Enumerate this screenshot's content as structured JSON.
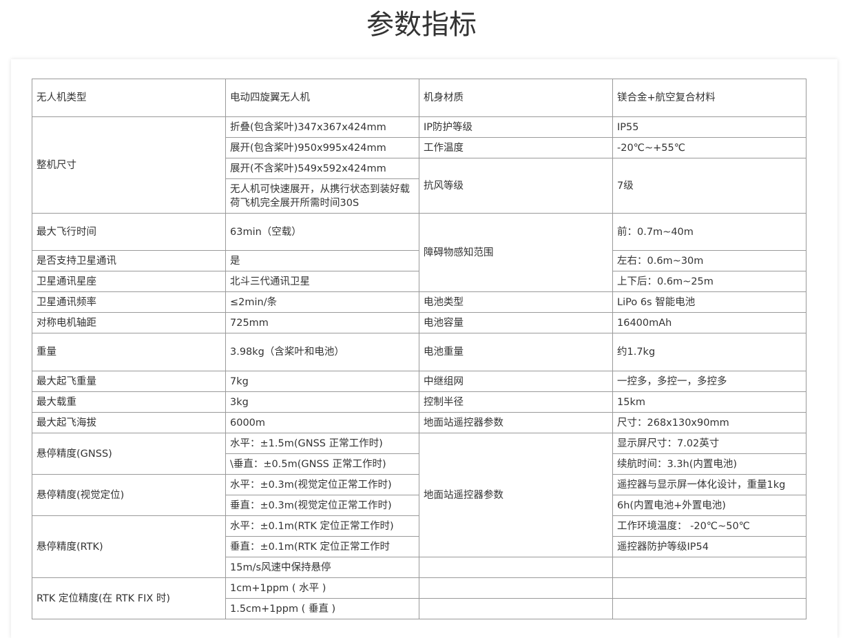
{
  "title": "参数指标",
  "rows": [
    {
      "h": 55,
      "cells": [
        {
          "t": "无人机类型"
        },
        {
          "t": "电动四旋翼无人机"
        },
        {
          "t": "机身材质"
        },
        {
          "t": "镁合金+航空复合材料"
        }
      ]
    },
    {
      "h": 30,
      "cells": [
        {
          "t": "整机尺寸",
          "rs": 4
        },
        {
          "t": "折叠(包含桨叶)347x367x424mm"
        },
        {
          "t": "IP防护等级"
        },
        {
          "t": "IP55"
        }
      ]
    },
    {
      "h": 30,
      "cells": [
        {
          "t": "展开(包含桨叶)950x995x424mm"
        },
        {
          "t": "工作温度"
        },
        {
          "t": "-20℃~+55℃"
        }
      ]
    },
    {
      "h": 30,
      "cells": [
        {
          "t": "展开(不含桨叶)549x592x424mm"
        },
        {
          "t": "抗风等级",
          "rs": 2
        },
        {
          "t": "7级",
          "rs": 2
        }
      ]
    },
    {
      "h": 50,
      "cells": [
        {
          "t": "无人机可快速展开，从携行状态到装好载荷飞机完全展开所需时间30S"
        }
      ]
    },
    {
      "h": 54,
      "cells": [
        {
          "t": "最大飞行时间"
        },
        {
          "t": "63min（空载）"
        },
        {
          "t": "障碍物感知范围",
          "rs": 3
        },
        {
          "t": "前：0.7m~40m"
        }
      ]
    },
    {
      "h": 30,
      "cells": [
        {
          "t": "是否支持卫星通讯"
        },
        {
          "t": "是"
        },
        {
          "t": "左右：0.6m~30m"
        }
      ]
    },
    {
      "h": 30,
      "cells": [
        {
          "t": "卫星通讯星座"
        },
        {
          "t": "北斗三代通讯卫星"
        },
        {
          "t": "上下后：0.6m~25m"
        }
      ]
    },
    {
      "h": 30,
      "cells": [
        {
          "t": "卫星通讯频率"
        },
        {
          "t": "≤2min/条"
        },
        {
          "t": "电池类型"
        },
        {
          "t": "LiPo 6s 智能电池"
        }
      ]
    },
    {
      "h": 30,
      "cells": [
        {
          "t": "对称电机轴距"
        },
        {
          "t": "725mm"
        },
        {
          "t": "电池容量"
        },
        {
          "t": " 16400mAh"
        }
      ]
    },
    {
      "h": 55,
      "cells": [
        {
          "t": "重量"
        },
        {
          "t": "3.98kg（含桨叶和电池）"
        },
        {
          "t": "电池重量"
        },
        {
          "t": "约1.7kg"
        }
      ]
    },
    {
      "h": 30,
      "cells": [
        {
          "t": "最大起飞重量"
        },
        {
          "t": "7kg"
        },
        {
          "t": "中继组网"
        },
        {
          "t": "一控多，多控一，多控多"
        }
      ]
    },
    {
      "h": 30,
      "cells": [
        {
          "t": "最大载重"
        },
        {
          "t": "3kg"
        },
        {
          "t": "控制半径"
        },
        {
          "t": "15km"
        }
      ]
    },
    {
      "h": 30,
      "cells": [
        {
          "t": "最大起飞海拔"
        },
        {
          "t": "6000m"
        },
        {
          "t": "地面站遥控器参数"
        },
        {
          "t": "尺寸：268x130x90mm"
        }
      ]
    },
    {
      "h": 30,
      "cells": [
        {
          "t": "悬停精度(GNSS)",
          "rs": 2
        },
        {
          "t": "水平：±1.5m(GNSS 正常工作时)"
        },
        {
          "t": "地面站遥控器参数",
          "rs": 6
        },
        {
          "t": "显示屏尺寸：7.02英寸"
        }
      ]
    },
    {
      "h": 30,
      "cells": [
        {
          "t": "\\垂直：±0.5m(GNSS 正常工作时)"
        },
        {
          "t": "续航时间：3.3h(内置电池)"
        }
      ]
    },
    {
      "h": 30,
      "cells": [
        {
          "t": "悬停精度(视觉定位)",
          "rs": 2
        },
        {
          "t": "水平：±0.3m(视觉定位正常工作时)"
        },
        {
          "t": "遥控器与显示屏一体化设计，重量1kg"
        }
      ]
    },
    {
      "h": 30,
      "cells": [
        {
          "t": "垂直：±0.3m(视觉定位正常工作时)"
        },
        {
          "t": "6h(内置电池+外置电池)"
        }
      ]
    },
    {
      "h": 30,
      "cells": [
        {
          "t": "悬停精度(RTK)",
          "rs": 3
        },
        {
          "t": "水平：±0.1m(RTK 定位正常工作时)"
        },
        {
          "t": "工作环境温度：  -20℃~50℃"
        }
      ]
    },
    {
      "h": 30,
      "cells": [
        {
          "t": "垂直：±0.1m(RTK 定位正常工作时"
        },
        {
          "t": "遥控器防护等级IP54"
        }
      ]
    },
    {
      "h": 30,
      "cells": [
        {
          "t": "15m/s风速中保持悬停"
        },
        {
          "t": ""
        },
        {
          "t": ""
        }
      ]
    },
    {
      "h": 30,
      "cells": [
        {
          "t": "RTK 定位精度(在 RTK FIX 时)",
          "rs": 2
        },
        {
          "t": "1cm+1ppm ( 水平 )"
        },
        {
          "t": ""
        },
        {
          "t": ""
        }
      ]
    },
    {
      "h": 30,
      "cells": [
        {
          "t": "1.5cm+1ppm ( 垂直 )"
        },
        {
          "t": ""
        },
        {
          "t": ""
        }
      ]
    }
  ]
}
